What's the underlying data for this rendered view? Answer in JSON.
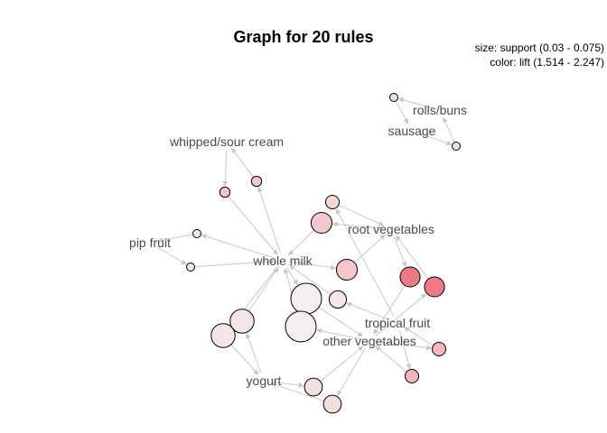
{
  "title": "Graph for 20 rules",
  "legend": {
    "size_text": "size: support (0.03 - 0.075)",
    "color_text": "color: lift (1.514 - 2.247)"
  },
  "colors": {
    "edge": "#c8c8c8",
    "label": "#4a4a4a",
    "lift_low": "#f5eeee",
    "lift_high": "#ee7a86"
  },
  "items": [
    {
      "id": "whole_milk",
      "label": "whole milk"
    },
    {
      "id": "whipped_sour_cream",
      "label": "whipped/sour cream"
    },
    {
      "id": "pip_fruit",
      "label": "pip fruit"
    },
    {
      "id": "root_vegetables",
      "label": "root vegetables"
    },
    {
      "id": "tropical_fruit",
      "label": "tropical fruit"
    },
    {
      "id": "other_vegetables",
      "label": "other vegetables"
    },
    {
      "id": "yogurt",
      "label": "yogurt"
    },
    {
      "id": "rolls_buns",
      "label": "rolls/buns"
    },
    {
      "id": "sausage",
      "label": "sausage"
    }
  ],
  "rules": [
    {
      "id": "r1",
      "lhs": [
        "rolls_buns"
      ],
      "rhs": "sausage",
      "support": 0.03,
      "lift": 1.62
    },
    {
      "id": "r2",
      "lhs": [
        "sausage"
      ],
      "rhs": "rolls_buns",
      "support": 0.03,
      "lift": 1.62
    },
    {
      "id": "r3",
      "lhs": [
        "whipped_sour_cream"
      ],
      "rhs": "whole_milk",
      "support": 0.032,
      "lift": 1.76
    },
    {
      "id": "r4",
      "lhs": [
        "whole_milk"
      ],
      "rhs": "whipped_sour_cream",
      "support": 0.032,
      "lift": 1.76
    },
    {
      "id": "r5",
      "lhs": [
        "whole_milk"
      ],
      "rhs": "pip_fruit",
      "support": 0.03,
      "lift": 1.56
    },
    {
      "id": "r6",
      "lhs": [
        "pip_fruit"
      ],
      "rhs": "whole_milk",
      "support": 0.03,
      "lift": 1.56
    },
    {
      "id": "r7",
      "lhs": [
        "root_vegetables"
      ],
      "rhs": "whole_milk",
      "support": 0.049,
      "lift": 1.76
    },
    {
      "id": "r8",
      "lhs": [
        "whole_milk"
      ],
      "rhs": "root_vegetables",
      "support": 0.049,
      "lift": 1.76
    },
    {
      "id": "r9",
      "lhs": [
        "tropical_fruit"
      ],
      "rhs": "whole_milk",
      "support": 0.042,
      "lift": 1.57
    },
    {
      "id": "r10",
      "lhs": [
        "whole_milk"
      ],
      "rhs": "other_vegetables",
      "support": 0.075,
      "lift": 1.51
    },
    {
      "id": "r11",
      "lhs": [
        "other_vegetables"
      ],
      "rhs": "whole_milk",
      "support": 0.075,
      "lift": 1.51
    },
    {
      "id": "r12",
      "lhs": [
        "root_vegetables"
      ],
      "rhs": "other_vegetables",
      "support": 0.047,
      "lift": 2.25
    },
    {
      "id": "r13",
      "lhs": [
        "other_vegetables"
      ],
      "rhs": "root_vegetables",
      "support": 0.047,
      "lift": 2.25
    },
    {
      "id": "r14",
      "lhs": [
        "tropical_fruit"
      ],
      "rhs": "other_vegetables",
      "support": 0.036,
      "lift": 1.86
    },
    {
      "id": "r15",
      "lhs": [
        "other_vegetables"
      ],
      "rhs": "tropical_fruit",
      "support": 0.036,
      "lift": 1.86
    },
    {
      "id": "r16",
      "lhs": [
        "yogurt"
      ],
      "rhs": "whole_milk",
      "support": 0.056,
      "lift": 1.57
    },
    {
      "id": "r17",
      "lhs": [
        "whole_milk"
      ],
      "rhs": "yogurt",
      "support": 0.056,
      "lift": 1.57
    },
    {
      "id": "r18",
      "lhs": [
        "yogurt"
      ],
      "rhs": "other_vegetables",
      "support": 0.043,
      "lift": 1.61
    },
    {
      "id": "r19",
      "lhs": [
        "other_vegetables"
      ],
      "rhs": "yogurt",
      "support": 0.043,
      "lift": 1.61
    },
    {
      "id": "r20",
      "lhs": [
        "tropical_fruit"
      ],
      "rhs": "root_vegetables",
      "support": 0.036,
      "lift": 1.65
    }
  ]
}
